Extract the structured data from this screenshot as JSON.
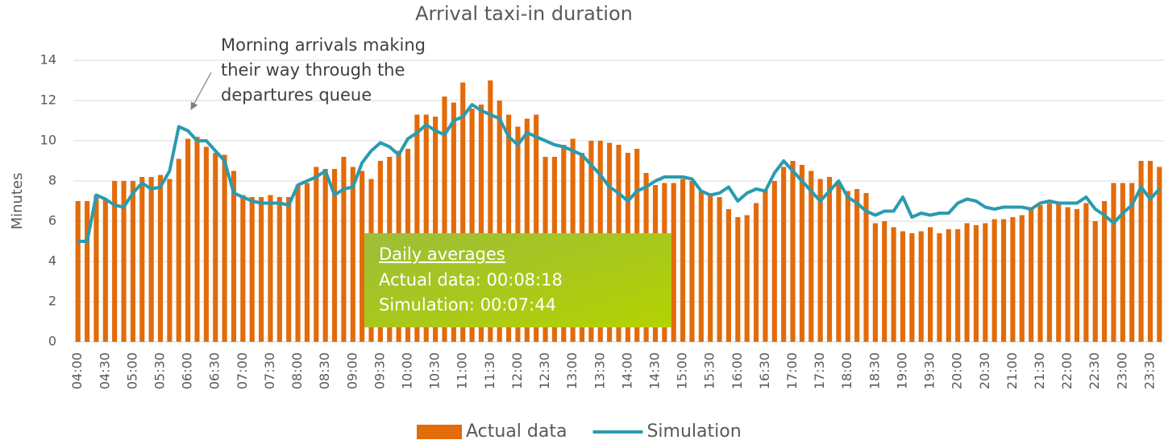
{
  "chart_data": {
    "type": "bar_line",
    "title": "Arrival taxi-in duration",
    "y_label": "Minutes",
    "annotation": [
      "Morning arrivals making",
      "their way through the",
      "departures queue"
    ],
    "info_box": {
      "title": "Daily averages",
      "lines": [
        "Actual data: 00:08:18",
        "Simulation: 00:07:44"
      ]
    },
    "categories": [
      "04:00",
      null,
      null,
      "04:30",
      null,
      null,
      "05:00",
      null,
      null,
      "05:30",
      null,
      null,
      "06:00",
      null,
      null,
      "06:30",
      null,
      null,
      "07:00",
      null,
      null,
      "07:30",
      null,
      null,
      "08:00",
      null,
      null,
      "08:30",
      null,
      null,
      "09:00",
      null,
      null,
      "09:30",
      null,
      null,
      "10:00",
      null,
      null,
      "10:30",
      null,
      null,
      "11:00",
      null,
      null,
      "11:30",
      null,
      null,
      "12:00",
      null,
      null,
      "12:30",
      null,
      null,
      "13:00",
      null,
      null,
      "13:30",
      null,
      null,
      "14:00",
      null,
      null,
      "14:30",
      null,
      null,
      "15:00",
      null,
      null,
      "15:30",
      null,
      null,
      "16:00",
      null,
      null,
      "16:30",
      null,
      null,
      "17:00",
      null,
      null,
      "17:30",
      null,
      null,
      "18:00",
      null,
      null,
      "18:30",
      null,
      null,
      "19:00",
      null,
      null,
      "19:30",
      null,
      null,
      "20:00",
      null,
      null,
      "20:30",
      null,
      null,
      "21:00",
      null,
      null,
      "21:30",
      null,
      null,
      "22:00",
      null,
      null,
      "22:30",
      null,
      null,
      "23:00",
      null,
      null,
      "23:30",
      null
    ],
    "series": [
      {
        "name": "Actual data",
        "type": "bar",
        "color": "#e26b0a",
        "values": [
          7.0,
          7.0,
          7.3,
          7.1,
          8.0,
          8.0,
          8.0,
          8.2,
          8.2,
          8.3,
          8.1,
          9.1,
          10.1,
          10.2,
          9.7,
          9.4,
          9.3,
          8.5,
          7.3,
          7.2,
          7.2,
          7.3,
          7.2,
          7.2,
          7.8,
          7.9,
          8.7,
          8.6,
          8.6,
          9.2,
          8.7,
          8.5,
          8.1,
          9.0,
          9.2,
          9.5,
          9.6,
          11.3,
          11.3,
          11.2,
          12.2,
          11.9,
          12.9,
          11.6,
          11.8,
          13.0,
          12.0,
          11.3,
          10.7,
          11.1,
          11.3,
          9.2,
          9.2,
          9.8,
          10.1,
          9.4,
          10.0,
          10.0,
          9.9,
          9.8,
          9.4,
          9.6,
          8.4,
          7.8,
          7.9,
          7.9,
          8.1,
          8.0,
          7.5,
          7.4,
          7.2,
          6.6,
          6.2,
          6.3,
          6.9,
          7.6,
          8.0,
          8.7,
          9.0,
          8.8,
          8.5,
          8.1,
          8.2,
          7.9,
          7.5,
          7.6,
          7.4,
          5.9,
          6.0,
          5.7,
          5.5,
          5.4,
          5.5,
          5.7,
          5.4,
          5.6,
          5.6,
          5.9,
          5.8,
          5.9,
          6.1,
          6.1,
          6.2,
          6.3,
          6.7,
          6.8,
          6.9,
          6.9,
          6.7,
          6.6,
          6.9,
          6.0,
          7.0,
          7.9,
          7.9,
          7.9,
          9.0,
          9.0,
          8.7
        ]
      },
      {
        "name": "Simulation",
        "type": "line",
        "color": "#2a9bb0",
        "values": [
          5.0,
          5.0,
          7.3,
          7.1,
          6.8,
          6.7,
          7.4,
          7.9,
          7.6,
          7.7,
          8.5,
          10.7,
          10.5,
          10.0,
          10.0,
          9.5,
          9.0,
          7.4,
          7.2,
          7.0,
          6.9,
          6.9,
          6.9,
          6.8,
          7.8,
          8.0,
          8.2,
          8.5,
          7.3,
          7.6,
          7.7,
          8.9,
          9.5,
          9.9,
          9.7,
          9.3,
          10.1,
          10.4,
          10.8,
          10.5,
          10.3,
          11.0,
          11.2,
          11.8,
          11.5,
          11.3,
          11.1,
          10.2,
          9.8,
          10.4,
          10.2,
          10.0,
          9.8,
          9.7,
          9.5,
          9.3,
          8.8,
          8.3,
          7.7,
          7.4,
          7.0,
          7.5,
          7.7,
          8.0,
          8.2,
          8.2,
          8.2,
          8.1,
          7.5,
          7.3,
          7.4,
          7.7,
          7.0,
          7.4,
          7.6,
          7.5,
          8.4,
          9.0,
          8.5,
          8.0,
          7.5,
          7.0,
          7.5,
          8.0,
          7.2,
          6.9,
          6.5,
          6.3,
          6.5,
          6.5,
          7.2,
          6.2,
          6.4,
          6.3,
          6.4,
          6.4,
          6.9,
          7.1,
          7.0,
          6.7,
          6.6,
          6.7,
          6.7,
          6.7,
          6.6,
          6.9,
          7.0,
          6.9,
          6.9,
          6.9,
          7.2,
          6.6,
          6.3,
          5.9,
          6.4,
          6.8,
          7.7,
          7.1,
          7.6
        ]
      }
    ],
    "ylim": [
      0,
      14
    ],
    "yticks": [
      0,
      2,
      4,
      6,
      8,
      10,
      12,
      14
    ],
    "grid": true,
    "legend": "bottom"
  }
}
